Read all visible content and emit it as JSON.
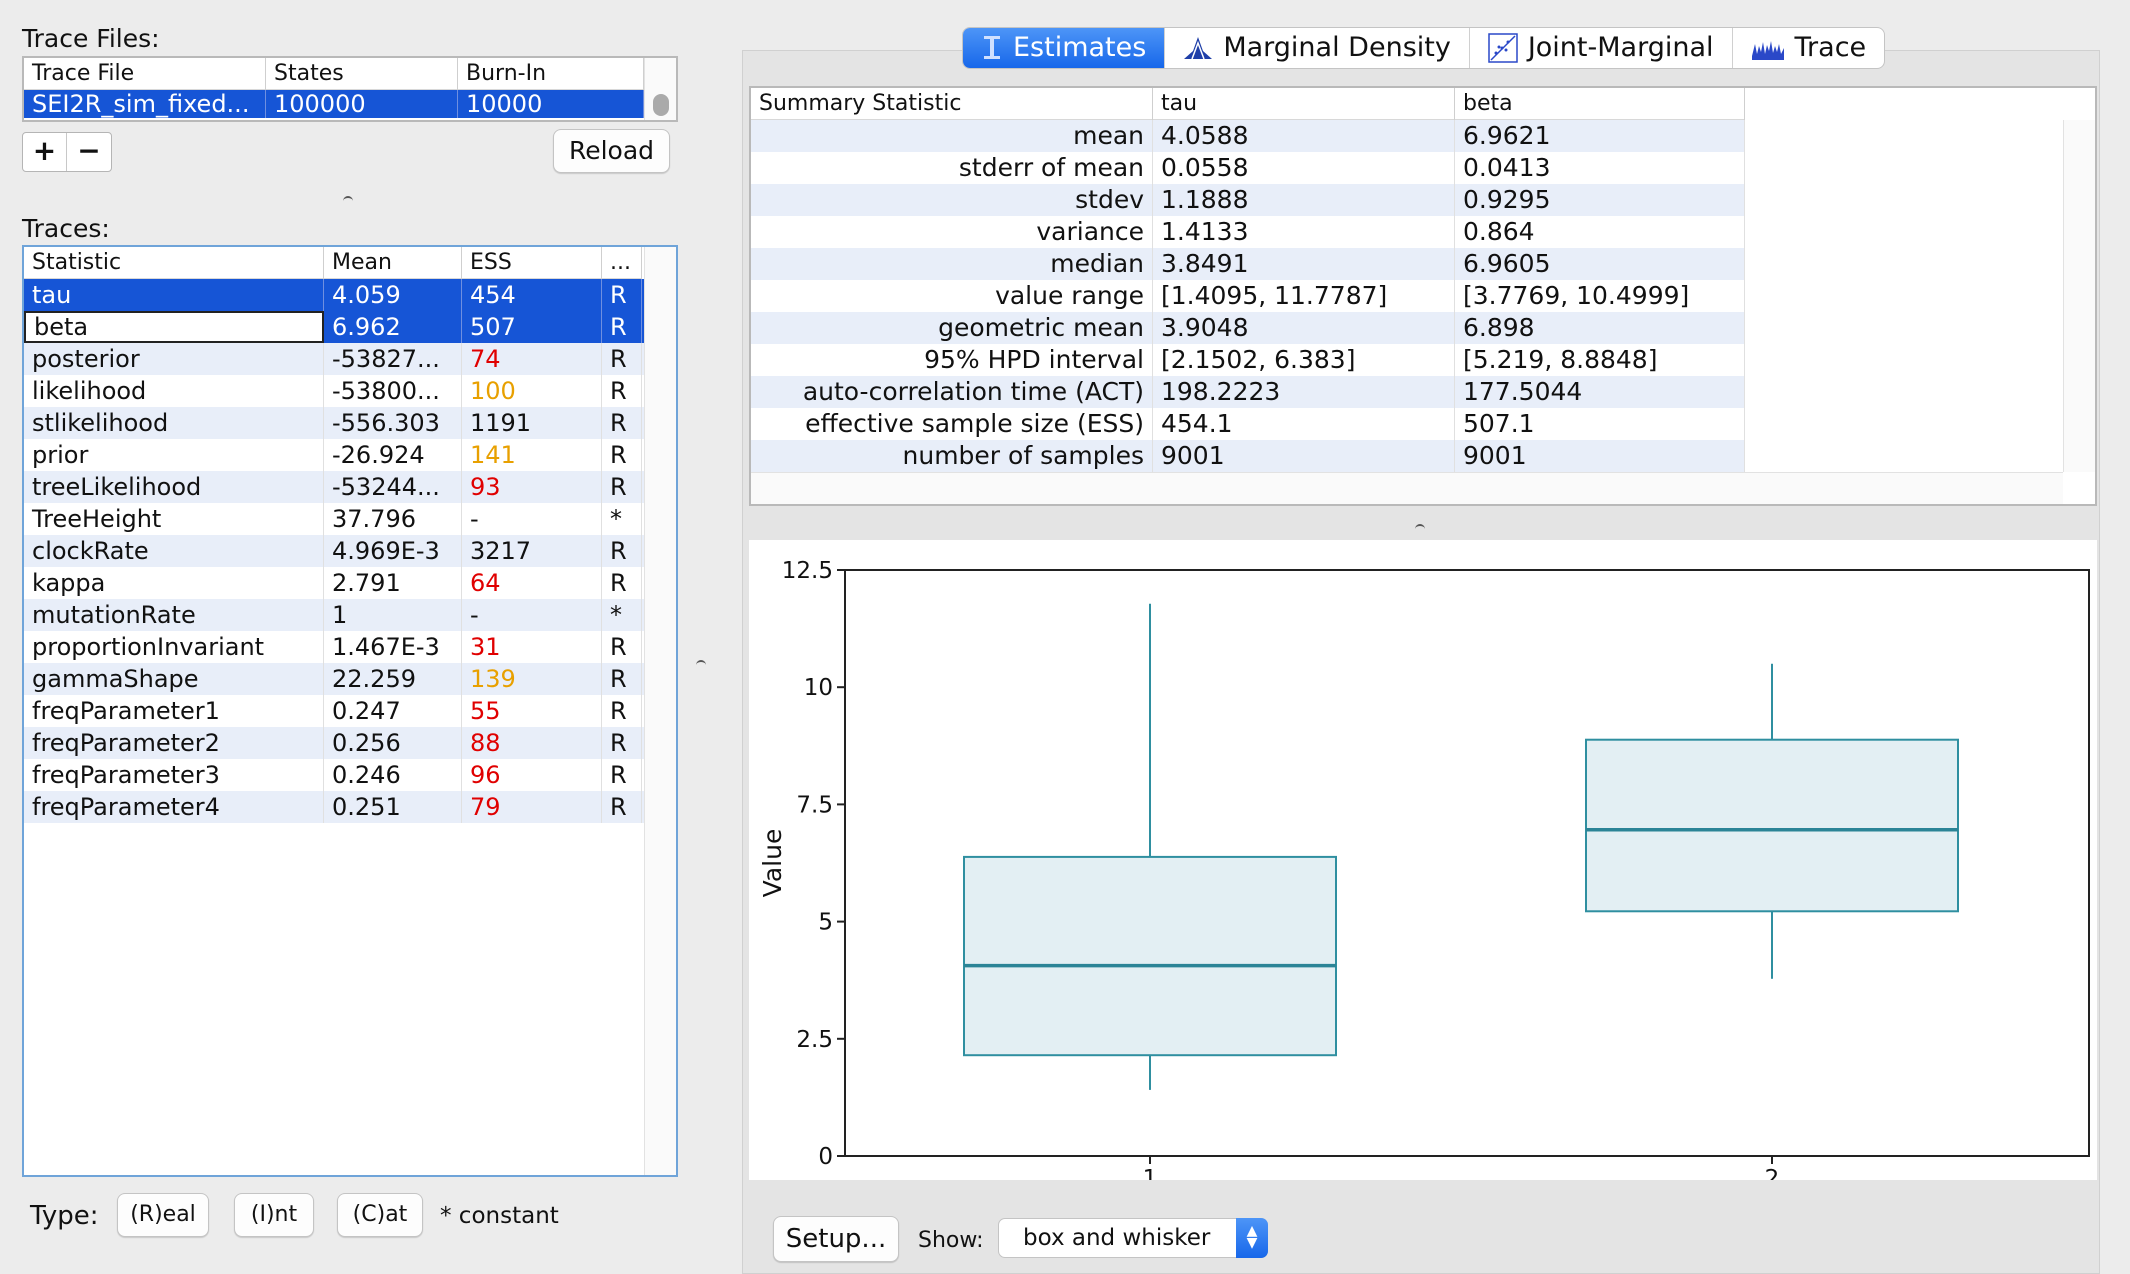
{
  "trace_files": {
    "title": "Trace Files:",
    "columns": [
      "Trace File",
      "States",
      "Burn-In"
    ],
    "rows": [
      [
        "SEI2R_sim_fixed...",
        "100000",
        "10000"
      ]
    ],
    "add_label": "+",
    "remove_label": "−",
    "reload_label": "Reload"
  },
  "traces": {
    "title": "Traces:",
    "columns": [
      "Statistic",
      "Mean",
      "ESS",
      "..."
    ],
    "rows": [
      {
        "stat": "tau",
        "mean": "4.059",
        "ess": "454",
        "type": "R",
        "ess_color": "normal"
      },
      {
        "stat": "beta",
        "mean": "6.962",
        "ess": "507",
        "type": "R",
        "ess_color": "normal"
      },
      {
        "stat": "posterior",
        "mean": "-53827...",
        "ess": "74",
        "type": "R",
        "ess_color": "red"
      },
      {
        "stat": "likelihood",
        "mean": "-53800...",
        "ess": "100",
        "type": "R",
        "ess_color": "orange"
      },
      {
        "stat": "stlikelihood",
        "mean": "-556.303",
        "ess": "1191",
        "type": "R",
        "ess_color": "normal"
      },
      {
        "stat": "prior",
        "mean": "-26.924",
        "ess": "141",
        "type": "R",
        "ess_color": "orange"
      },
      {
        "stat": "treeLikelihood",
        "mean": "-53244...",
        "ess": "93",
        "type": "R",
        "ess_color": "red"
      },
      {
        "stat": "TreeHeight",
        "mean": "37.796",
        "ess": "-",
        "type": "*",
        "ess_color": "normal"
      },
      {
        "stat": "clockRate",
        "mean": "4.969E-3",
        "ess": "3217",
        "type": "R",
        "ess_color": "normal"
      },
      {
        "stat": "kappa",
        "mean": "2.791",
        "ess": "64",
        "type": "R",
        "ess_color": "red"
      },
      {
        "stat": "mutationRate",
        "mean": "1",
        "ess": "-",
        "type": "*",
        "ess_color": "normal"
      },
      {
        "stat": "proportionInvariant",
        "mean": "1.467E-3",
        "ess": "31",
        "type": "R",
        "ess_color": "red"
      },
      {
        "stat": "gammaShape",
        "mean": "22.259",
        "ess": "139",
        "type": "R",
        "ess_color": "orange"
      },
      {
        "stat": "freqParameter1",
        "mean": "0.247",
        "ess": "55",
        "type": "R",
        "ess_color": "red"
      },
      {
        "stat": "freqParameter2",
        "mean": "0.256",
        "ess": "88",
        "type": "R",
        "ess_color": "red"
      },
      {
        "stat": "freqParameter3",
        "mean": "0.246",
        "ess": "96",
        "type": "R",
        "ess_color": "red"
      },
      {
        "stat": "freqParameter4",
        "mean": "0.251",
        "ess": "79",
        "type": "R",
        "ess_color": "red"
      }
    ]
  },
  "type_bar": {
    "label": "Type:",
    "real": "(R)eal",
    "int": "(I)nt",
    "cat": "(C)at",
    "constant_note": "* constant"
  },
  "tabs": [
    "Estimates",
    "Marginal Density",
    "Joint-Marginal",
    "Trace"
  ],
  "summary": {
    "columns": [
      "Summary Statistic",
      "tau",
      "beta"
    ],
    "rows": [
      [
        "mean",
        "4.0588",
        "6.9621"
      ],
      [
        "stderr of mean",
        "0.0558",
        "0.0413"
      ],
      [
        "stdev",
        "1.1888",
        "0.9295"
      ],
      [
        "variance",
        "1.4133",
        "0.864"
      ],
      [
        "median",
        "3.8491",
        "6.9605"
      ],
      [
        "value range",
        "[1.4095, 11.7787]",
        "[3.7769, 10.4999]"
      ],
      [
        "geometric mean",
        "3.9048",
        "6.898"
      ],
      [
        "95% HPD interval",
        "[2.1502, 6.383]",
        "[5.219, 8.8848]"
      ],
      [
        "auto-correlation time (ACT)",
        "198.2223",
        "177.5044"
      ],
      [
        "effective sample size (ESS)",
        "454.1",
        "507.1"
      ],
      [
        "number of samples",
        "9001",
        "9001"
      ]
    ]
  },
  "chart_data": {
    "type": "box",
    "ylabel": "Value",
    "xlabel": "",
    "ylim": [
      0,
      12.5
    ],
    "yticks": [
      "0",
      "2.5",
      "5",
      "7.5",
      "10",
      "12.5"
    ],
    "categories": [
      "1",
      "2"
    ],
    "boxes": [
      {
        "whisker_low": 1.41,
        "q1": 2.15,
        "median": 4.06,
        "q3": 6.38,
        "whisker_high": 11.78
      },
      {
        "whisker_low": 3.78,
        "q1": 5.22,
        "median": 6.96,
        "q3": 8.88,
        "whisker_high": 10.5
      }
    ],
    "colors": {
      "box_fill": "#e3eff3",
      "box_stroke": "#2f8fa0",
      "median": "#2b8496"
    }
  },
  "bottom_bar": {
    "setup_label": "Setup...",
    "show_label": "Show:",
    "show_value": "box and whisker"
  },
  "colors": {
    "selection": "#1655d6",
    "ess_low": "#e00000",
    "ess_mid": "#e8a000"
  }
}
